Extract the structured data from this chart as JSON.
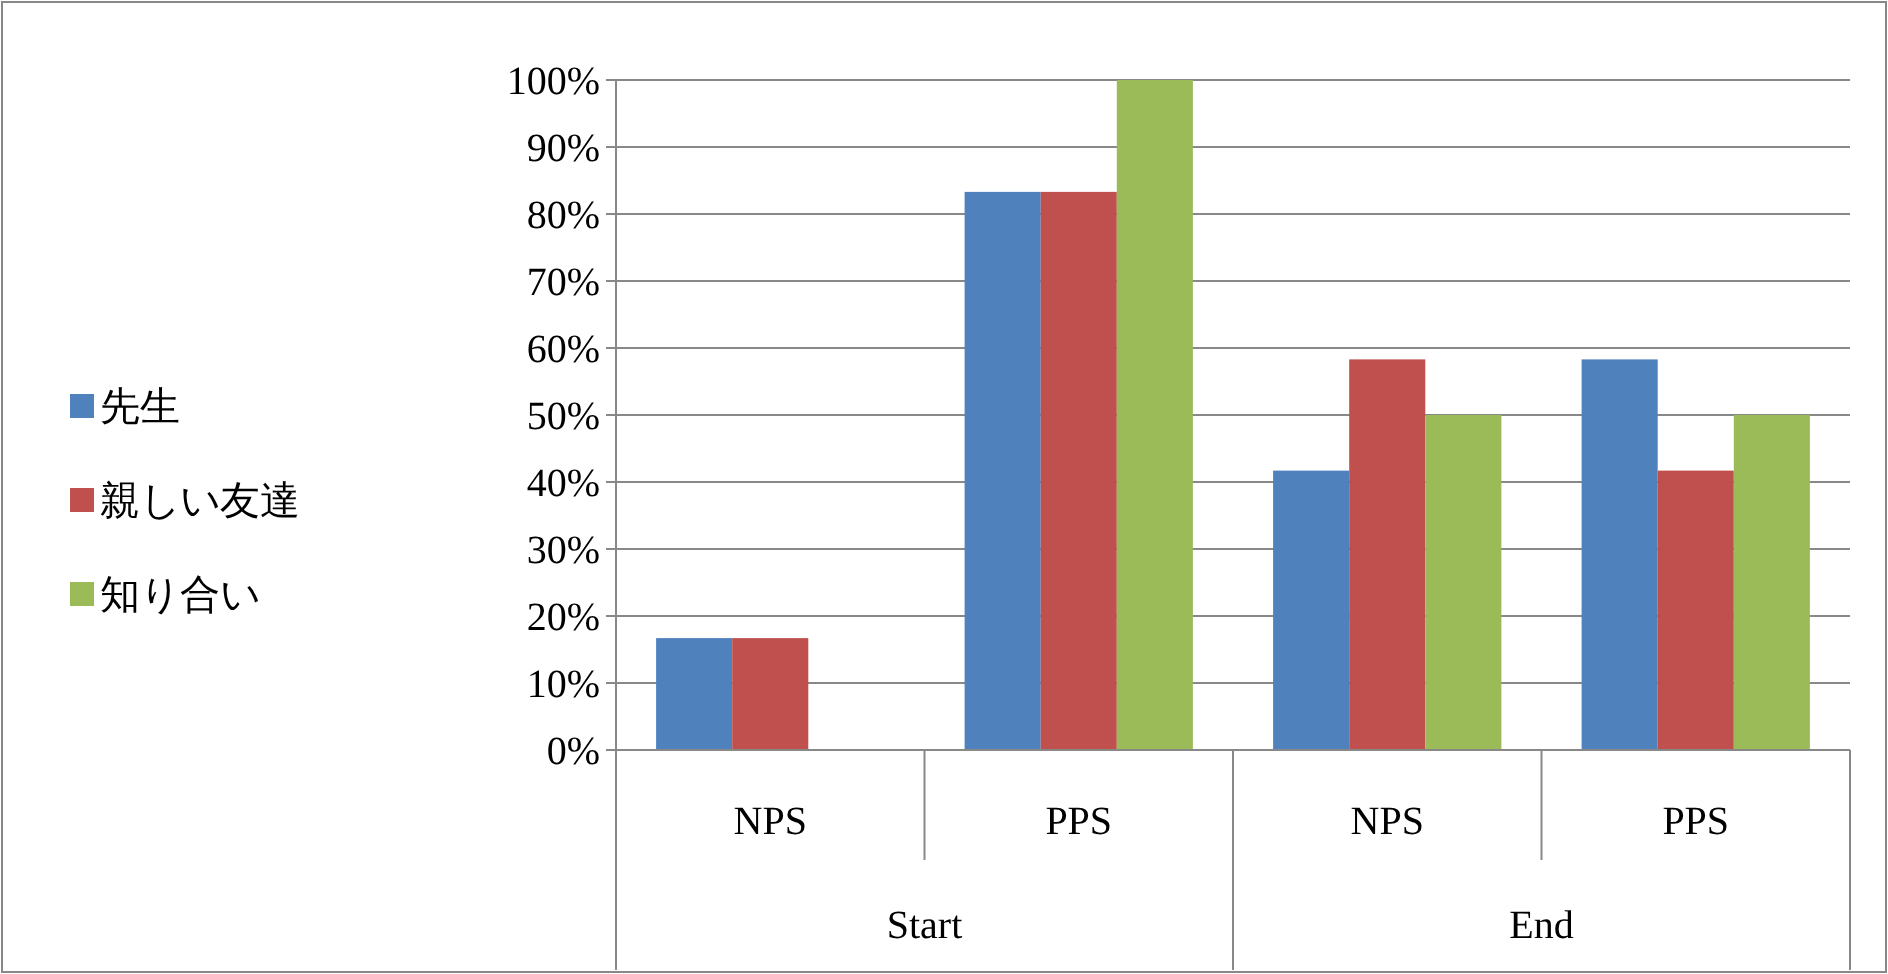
{
  "chart_data": {
    "type": "bar",
    "categories": [
      "NPS",
      "PPS",
      "NPS",
      "PPS"
    ],
    "annotations": [
      "Start",
      "End"
    ],
    "series": [
      {
        "name": "先生",
        "color": "#4f81bd",
        "values": [
          16.7,
          83.3,
          41.7,
          58.3
        ]
      },
      {
        "name": "親しい友達",
        "color": "#c0504d",
        "values": [
          16.7,
          83.3,
          58.3,
          41.7
        ]
      },
      {
        "name": "知り合い",
        "color": "#9bbb59",
        "values": [
          0,
          100,
          50,
          50
        ]
      }
    ],
    "ylim": [
      0,
      100
    ],
    "yticks": [
      {
        "value": 0,
        "label": "0%"
      },
      {
        "value": 10,
        "label": "10%"
      },
      {
        "value": 20,
        "label": "20%"
      },
      {
        "value": 30,
        "label": "30%"
      },
      {
        "value": 40,
        "label": "40%"
      },
      {
        "value": 50,
        "label": "50%"
      },
      {
        "value": 60,
        "label": "60%"
      },
      {
        "value": 70,
        "label": "70%"
      },
      {
        "value": 80,
        "label": "80%"
      },
      {
        "value": 90,
        "label": "90%"
      },
      {
        "value": 100,
        "label": "100%"
      }
    ],
    "grid": "y",
    "legend": "left"
  }
}
